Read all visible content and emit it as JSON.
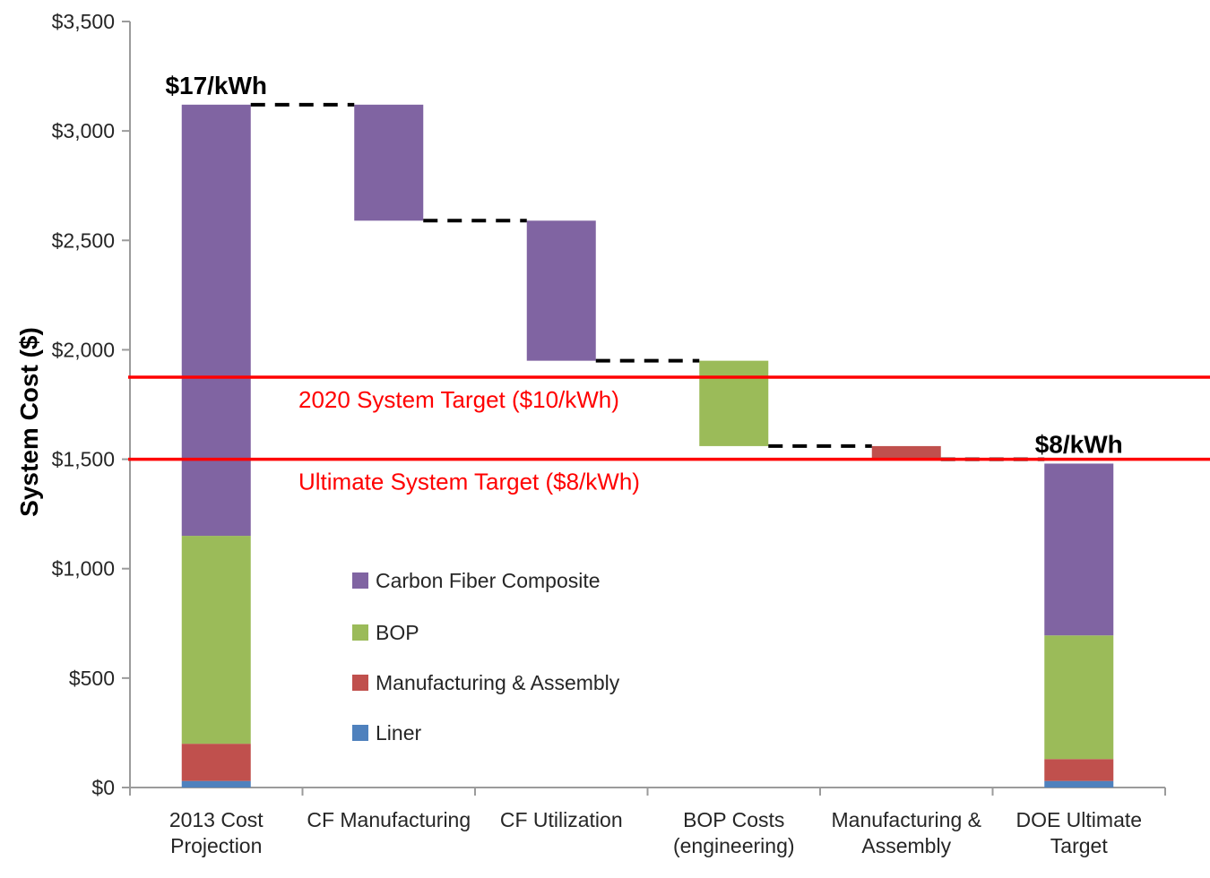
{
  "chart_data": {
    "type": "bar",
    "subtype": "waterfall-stacked",
    "title": "",
    "ylabel": "System Cost ($)",
    "ylim": [
      0,
      3500
    ],
    "ytick_step": 500,
    "ytick_labels": [
      "$0",
      "$500",
      "$1,000",
      "$1,500",
      "$2,000",
      "$2,500",
      "$3,000",
      "$3,500"
    ],
    "grid": "off",
    "categories": [
      "2013 Cost Projection",
      "CF Manufacturing",
      "CF Utilization",
      "BOP Costs (engineering)",
      "Manufacturing & Assembly",
      "DOE Ultimate Target"
    ],
    "category_label_lines": [
      [
        "2013 Cost",
        "Projection"
      ],
      [
        "CF Manufacturing"
      ],
      [
        "CF Utilization"
      ],
      [
        "BOP Costs",
        "(engineering)"
      ],
      [
        "Manufacturing &",
        "Assembly"
      ],
      [
        "DOE Ultimate",
        "Target"
      ]
    ],
    "series": [
      {
        "name": "Carbon Fiber Composite",
        "color": "#8064A2"
      },
      {
        "name": "BOP",
        "color": "#9BBB59"
      },
      {
        "name": "Manufacturing & Assembly",
        "color": "#C0504D"
      },
      {
        "name": "Liner",
        "color": "#4F81BD"
      }
    ],
    "bars": [
      {
        "category": "2013 Cost Projection",
        "start": 0,
        "end": 3120,
        "segments": [
          {
            "series": "Liner",
            "from": 0,
            "to": 30
          },
          {
            "series": "Manufacturing & Assembly",
            "from": 30,
            "to": 200
          },
          {
            "series": "BOP",
            "from": 200,
            "to": 1150
          },
          {
            "series": "Carbon Fiber Composite",
            "from": 1150,
            "to": 3120
          }
        ]
      },
      {
        "category": "CF Manufacturing",
        "start": 3120,
        "end": 2590,
        "segments": [
          {
            "series": "Carbon Fiber Composite",
            "from": 2590,
            "to": 3120
          }
        ]
      },
      {
        "category": "CF Utilization",
        "start": 2590,
        "end": 1950,
        "segments": [
          {
            "series": "Carbon Fiber Composite",
            "from": 1950,
            "to": 2590
          }
        ]
      },
      {
        "category": "BOP Costs (engineering)",
        "start": 1950,
        "end": 1560,
        "segments": [
          {
            "series": "BOP",
            "from": 1560,
            "to": 1950
          }
        ]
      },
      {
        "category": "Manufacturing & Assembly",
        "start": 1560,
        "end": 1500,
        "segments": [
          {
            "series": "Manufacturing & Assembly",
            "from": 1500,
            "to": 1560
          }
        ]
      },
      {
        "category": "DOE Ultimate Target",
        "start": 0,
        "end": 1480,
        "segments": [
          {
            "series": "Liner",
            "from": 0,
            "to": 30
          },
          {
            "series": "Manufacturing & Assembly",
            "from": 30,
            "to": 130
          },
          {
            "series": "BOP",
            "from": 130,
            "to": 695
          },
          {
            "series": "Carbon Fiber Composite",
            "from": 695,
            "to": 1480
          }
        ]
      }
    ],
    "connectors": [
      {
        "from_category": 0,
        "to_category": 1,
        "value": 3120
      },
      {
        "from_category": 1,
        "to_category": 2,
        "value": 2590
      },
      {
        "from_category": 2,
        "to_category": 3,
        "value": 1950
      },
      {
        "from_category": 3,
        "to_category": 4,
        "value": 1560
      },
      {
        "from_category": 4,
        "to_category": 5,
        "value": 1500
      }
    ],
    "target_lines": [
      {
        "label": "2020 System Target ($10/kWh)",
        "value": 1875,
        "color": "#FF0000"
      },
      {
        "label": "Ultimate System Target ($8/kWh)",
        "value": 1500,
        "color": "#FF0000"
      }
    ],
    "annotations": [
      {
        "text": "$17/kWh",
        "category": 0,
        "value": 3120
      },
      {
        "text": "$8/kWh",
        "category": 5,
        "value": 1480
      }
    ],
    "legend": {
      "position": "inside-center-left",
      "items": [
        {
          "label": "Carbon Fiber Composite",
          "color": "#8064A2"
        },
        {
          "label": "BOP",
          "color": "#9BBB59"
        },
        {
          "label": "Manufacturing & Assembly",
          "color": "#C0504D"
        },
        {
          "label": "Liner",
          "color": "#4F81BD"
        }
      ]
    },
    "axis_color": "#9B9B9B",
    "text_color": "#262626",
    "connector_color": "#000000"
  }
}
